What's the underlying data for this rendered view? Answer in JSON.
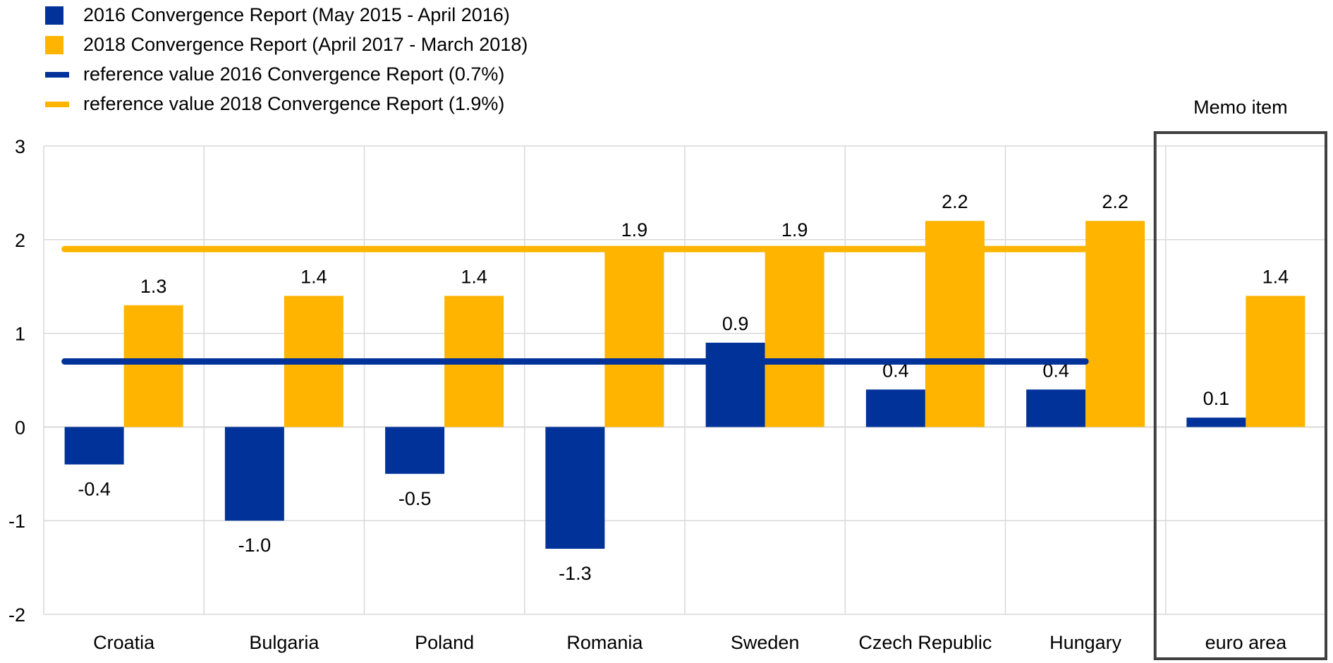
{
  "chart_data": {
    "type": "bar",
    "categories": [
      "Croatia",
      "Bulgaria",
      "Poland",
      "Romania",
      "Sweden",
      "Czech Republic",
      "Hungary",
      "euro area"
    ],
    "series": [
      {
        "name": "2016 Convergence Report (May 2015 - April 2016)",
        "color": "#003299",
        "values": [
          -0.4,
          -1.0,
          -0.5,
          -1.3,
          0.9,
          0.4,
          0.4,
          0.1
        ],
        "labels": [
          "-0.4",
          "-1.0",
          "-0.5",
          "-1.3",
          "0.9",
          "0.4",
          "0.4",
          "0.1"
        ]
      },
      {
        "name": "2018 Convergence Report (April 2017 - March 2018)",
        "color": "#FFB400",
        "values": [
          1.3,
          1.4,
          1.4,
          1.9,
          1.9,
          2.2,
          2.2,
          1.4
        ],
        "labels": [
          "1.3",
          "1.4",
          "1.4",
          "1.9",
          "1.9",
          "2.2",
          "2.2",
          "1.4"
        ]
      }
    ],
    "reference_lines": [
      {
        "name": "reference value 2016 Convergence Report (0.7%)",
        "value": 0.7,
        "color": "#003299"
      },
      {
        "name": "reference value 2018 Convergence Report (1.9%)",
        "value": 1.9,
        "color": "#FFB400"
      }
    ],
    "ylim": [
      -2,
      3
    ],
    "yticks": [
      "-2",
      "-1",
      "0",
      "1",
      "2",
      "3"
    ],
    "grid": true,
    "memo_label": "Memo item",
    "title": "",
    "xlabel": "",
    "ylabel": ""
  }
}
